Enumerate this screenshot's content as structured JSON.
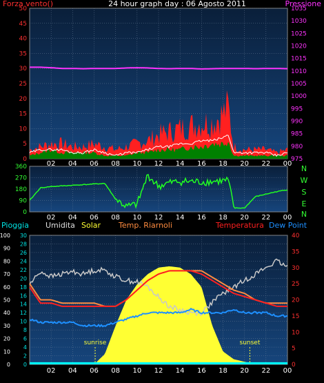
{
  "title": "24 hour graph day : 06 Agosto 2011",
  "colors": {
    "plot_bg_top": "#0a1f3a",
    "plot_bg_bottom": "#16457c",
    "grid": "#6a7f99",
    "wind": "#ff2020",
    "gust": "#008000",
    "white_line": "#ffffff",
    "pressure": "#ff33ff",
    "direction": "#22ff22",
    "humidity": "#c8c8c8",
    "solar": "#ffff33",
    "apparent_temp": "#ff8c40",
    "temperature": "#ff2020",
    "dew_point": "#1e90ff",
    "rain": "#00ffff",
    "axis_red": "#ff3030",
    "axis_cyan": "#00e5e5",
    "axis_white": "#ffffff",
    "axis_magenta": "#ff33ff",
    "axis_green": "#33ff33"
  },
  "chart_data": [
    {
      "type": "line",
      "labels": {
        "left": "Forza vento()",
        "right": "Pressione"
      },
      "x_ticks": [
        "02",
        "04",
        "06",
        "08",
        "10",
        "12",
        "14",
        "16",
        "18",
        "20",
        "22",
        "00"
      ],
      "y_left_ticks": [
        "0",
        "5",
        "10",
        "15",
        "20",
        "25",
        "30",
        "35",
        "40",
        "45",
        "50"
      ],
      "y_left_range": [
        0,
        50
      ],
      "y_right_ticks": [
        "975",
        "980",
        "985",
        "990",
        "995",
        "1000",
        "1005",
        "1010",
        "1015",
        "1020",
        "1025",
        "1030",
        "1035"
      ],
      "y_right_range": [
        975,
        1035
      ],
      "x_hours": [
        0,
        1,
        2,
        3,
        4,
        5,
        6,
        7,
        8,
        9,
        10,
        11,
        12,
        13,
        14,
        15,
        16,
        17,
        18,
        18.5,
        19,
        20,
        21,
        22,
        23,
        24
      ],
      "series": [
        {
          "key": "wind_red",
          "values": [
            3,
            4,
            5,
            5,
            4,
            4,
            5,
            4,
            3,
            4,
            5,
            6,
            8,
            9,
            10,
            11,
            12,
            12,
            15,
            17,
            4,
            3,
            3,
            3,
            2,
            3
          ]
        },
        {
          "key": "white",
          "values": [
            2,
            3,
            3,
            3,
            2,
            2,
            3,
            2,
            1,
            2,
            2,
            3,
            4,
            4,
            5,
            5,
            6,
            6,
            7,
            8,
            2,
            2,
            2,
            2,
            1,
            2
          ]
        },
        {
          "key": "gust_green",
          "values": [
            1,
            2,
            3,
            2,
            2,
            2,
            2,
            1,
            1,
            1,
            2,
            2,
            3,
            3,
            3,
            4,
            4,
            5,
            5,
            6,
            1,
            1,
            1,
            1,
            1,
            1
          ]
        },
        {
          "key": "pressure",
          "axis": "right",
          "values": [
            1011.5,
            1011.5,
            1011.3,
            1011,
            1011,
            1010.9,
            1011,
            1011,
            1011,
            1011.2,
            1011.3,
            1011.2,
            1011,
            1010.9,
            1011,
            1011,
            1010.8,
            1010.9,
            1011,
            1011,
            1011,
            1011,
            1010.9,
            1011,
            1011,
            1010.9
          ]
        }
      ]
    },
    {
      "type": "line",
      "labels": {
        "compass": [
          "N",
          "W",
          "S",
          "E",
          "N"
        ]
      },
      "x_ticks": [
        "02",
        "04",
        "06",
        "08",
        "10",
        "12",
        "14",
        "16",
        "18",
        "20",
        "22",
        "00"
      ],
      "y_ticks": [
        "0",
        "90",
        "180",
        "270",
        "360"
      ],
      "y_range": [
        0,
        360
      ],
      "x_hours": [
        0,
        1,
        2,
        3,
        4,
        5,
        6,
        7,
        8,
        9,
        10,
        11,
        12,
        13,
        14,
        15,
        16,
        17,
        18,
        18.5,
        19,
        20,
        21,
        22,
        23,
        24
      ],
      "series": [
        {
          "key": "direction",
          "values": [
            90,
            190,
            200,
            205,
            210,
            215,
            220,
            225,
            100,
            40,
            60,
            290,
            200,
            230,
            240,
            240,
            235,
            240,
            245,
            250,
            30,
            30,
            120,
            140,
            160,
            175
          ]
        }
      ]
    },
    {
      "type": "area",
      "labels": {
        "pioggia": "Pioggia",
        "umidita": "Umidita",
        "solar": "Solar",
        "apparent": "Temp. Riarnoli",
        "temperatura": "Temperatura",
        "dewpoint": "Dew Point",
        "sunrise": "sunrise",
        "sunset": "sunset"
      },
      "x_ticks": [
        "02",
        "04",
        "06",
        "08",
        "10",
        "12",
        "14",
        "16",
        "18",
        "20",
        "22",
        "00"
      ],
      "y_left_ticks": [
        "0",
        "10",
        "20",
        "30",
        "40",
        "50",
        "60",
        "70",
        "80",
        "90",
        "100"
      ],
      "y_left_range": [
        0,
        100
      ],
      "y_left2_ticks": [
        "0",
        "2",
        "4",
        "6",
        "8",
        "10",
        "12",
        "14",
        "16",
        "18",
        "20",
        "22",
        "24",
        "26",
        "28",
        "30"
      ],
      "y_left2_range": [
        0,
        30
      ],
      "y_right_ticks": [
        "0",
        "5",
        "10",
        "15",
        "20",
        "25",
        "30",
        "35",
        "40"
      ],
      "y_right_range": [
        0,
        40
      ],
      "sunrise_hour": 6.1,
      "sunset_hour": 20.5,
      "x_hours": [
        0,
        1,
        2,
        3,
        4,
        5,
        6,
        7,
        8,
        9,
        10,
        11,
        12,
        13,
        14,
        15,
        16,
        17,
        18,
        19,
        20,
        21,
        22,
        23,
        24
      ],
      "series": [
        {
          "key": "humidity",
          "axis": "left",
          "values": [
            62,
            72,
            68,
            70,
            72,
            70,
            73,
            73,
            68,
            65,
            64,
            60,
            52,
            45,
            42,
            40,
            40,
            48,
            55,
            60,
            65,
            70,
            75,
            80,
            75
          ]
        },
        {
          "key": "solar",
          "axis": "left",
          "values": [
            0,
            0,
            0,
            0,
            0,
            0,
            0,
            8,
            30,
            50,
            62,
            70,
            75,
            76,
            75,
            70,
            60,
            30,
            10,
            4,
            2,
            0,
            0,
            0,
            0
          ]
        },
        {
          "key": "apparent_temp",
          "axis": "right",
          "values": [
            25,
            20,
            20,
            19,
            19,
            19,
            19,
            18,
            18,
            20,
            23,
            26,
            28,
            29,
            29,
            29,
            29,
            27,
            25,
            23,
            22,
            20,
            19,
            19,
            19
          ]
        },
        {
          "key": "temperature",
          "axis": "right",
          "values": [
            24,
            19,
            19,
            18,
            18,
            18,
            18,
            18,
            18,
            20,
            23,
            26,
            28,
            29,
            29,
            29,
            28,
            26,
            24,
            22,
            21,
            20,
            19,
            18,
            18
          ]
        },
        {
          "key": "dew_point",
          "axis": "right",
          "values": [
            14,
            13,
            13,
            13,
            13,
            12,
            12,
            12,
            13,
            14,
            15,
            16,
            16,
            16,
            16,
            17,
            16,
            16,
            16,
            17,
            16,
            16,
            16,
            15,
            15
          ]
        },
        {
          "key": "rain",
          "axis": "left2",
          "values": [
            0.5,
            0.5,
            0.5,
            0.5,
            0.5,
            0.5,
            0.5,
            0.5,
            0.5,
            0.5,
            0.5,
            0.5,
            0.5,
            0.5,
            0.5,
            0.5,
            0.5,
            0.5,
            0.5,
            0.5,
            0.5,
            0.5,
            0.5,
            0.5,
            0.5
          ]
        }
      ]
    }
  ]
}
